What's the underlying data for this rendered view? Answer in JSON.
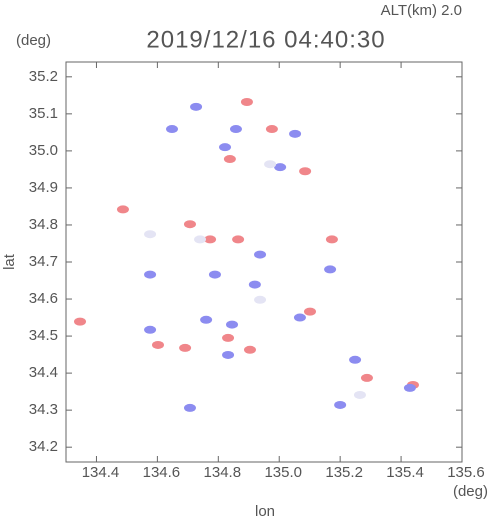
{
  "chart_data": {
    "type": "scatter",
    "title": "2019/12/16 04:40:30",
    "annotation": "ALT(km)  2.0",
    "x_label": "lon",
    "y_label": "lat",
    "x_unit": "(deg)",
    "y_unit": "(deg)",
    "xlim": [
      134.3,
      135.6
    ],
    "ylim": [
      34.16,
      35.24
    ],
    "xticks": [
      134.4,
      134.6,
      134.8,
      {
        "value": 135,
        "label": "135.0"
      },
      135.2,
      135.4,
      135.6
    ],
    "yticks": [
      34.2,
      34.3,
      34.4,
      34.5,
      34.6,
      34.7,
      34.8,
      34.9,
      {
        "value": 35,
        "label": "35.0"
      },
      35.1,
      35.2
    ],
    "series": [
      {
        "color": "#f0868a",
        "x": [
          134.894,
          134.976,
          134.487,
          134.346,
          134.691,
          134.602,
          134.865,
          134.773,
          135.173,
          134.832,
          135.439,
          135.288,
          135.085,
          134.838,
          134.904,
          135.101,
          134.707
        ],
        "y": [
          35.132,
          35.059,
          34.842,
          34.539,
          34.468,
          34.476,
          34.761,
          34.761,
          34.761,
          34.495,
          34.368,
          34.387,
          34.945,
          34.978,
          34.463,
          34.566,
          34.802
        ]
      },
      {
        "color": "#8c8cf0",
        "x": [
          134.648,
          134.727,
          134.858,
          135.052,
          135.003,
          134.822,
          135.429,
          135.2,
          135.249,
          134.937,
          134.789,
          134.92,
          134.845,
          134.76,
          134.576,
          134.707,
          135.068,
          135.167,
          134.576,
          134.832
        ],
        "y": [
          35.059,
          35.119,
          35.059,
          35.046,
          34.956,
          35.01,
          34.36,
          34.314,
          34.436,
          34.72,
          34.666,
          34.639,
          34.531,
          34.544,
          34.517,
          34.306,
          34.55,
          34.68,
          34.666,
          34.449
        ]
      },
      {
        "color": "#e4e4f4",
        "x": [
          135.265,
          134.74,
          134.97,
          134.937,
          134.576
        ],
        "y": [
          34.341,
          34.761,
          34.964,
          34.598,
          34.775
        ]
      }
    ]
  }
}
